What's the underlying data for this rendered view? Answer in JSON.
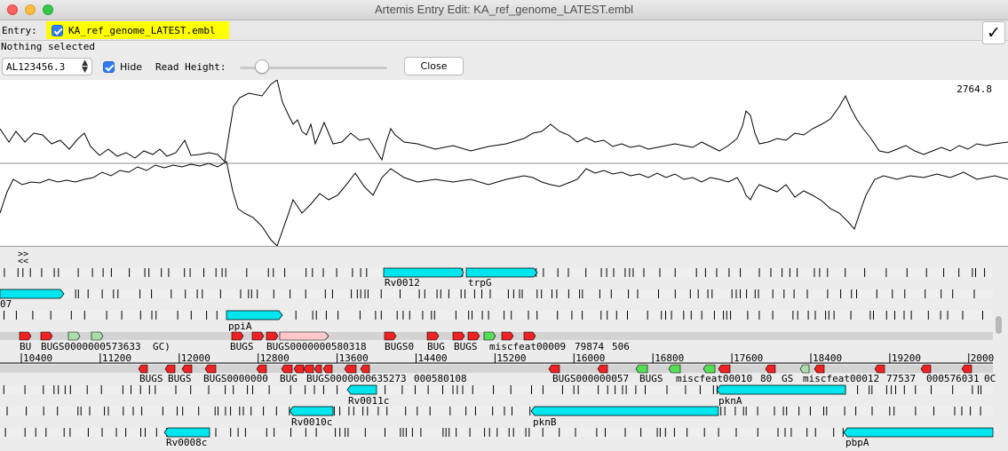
{
  "window": {
    "title": "Artemis Entry Edit: KA_ref_genome_LATEST.embl"
  },
  "entry_bar": {
    "label": "Entry:",
    "entry_name": "KA_ref_genome_LATEST.embl",
    "confirm_icon": "✓"
  },
  "status": {
    "text": "Nothing selected"
  },
  "controls": {
    "sequence_value": "AL123456.3",
    "hide_label": "Hide",
    "read_height_label": "Read Height:",
    "read_height_level": 0.15,
    "close_label": "Close"
  },
  "graph": {
    "max_label": "2764.8"
  },
  "nav": {
    "forward": ">>",
    "back": "<<"
  },
  "ruler": {
    "ticks": [
      "10400",
      "11200",
      "12000",
      "12800",
      "13600",
      "14400",
      "15200",
      "16000",
      "16800",
      "17600",
      "18400",
      "19200",
      "2000"
    ]
  },
  "features": {
    "forward_genes": [
      "Rv0012",
      "trpG",
      "ppiA"
    ],
    "fwd_frame2_label": "07",
    "reverse_genes": [
      "Rv0011c",
      "pknA",
      "Rv0010c",
      "pknB",
      "Rv0008c",
      "pbpA"
    ],
    "forward_misc": [
      "BU",
      "BUGS0000000573633",
      "GC)",
      "BUGS",
      "BUGS0000000580318",
      "BUGS0",
      "BUG",
      "BUGS",
      "miscfeat00009",
      "79874",
      "506"
    ],
    "reverse_misc": [
      "BUGS",
      "BUGS",
      "BUGS0000000",
      "BUG",
      "BUGS0000000635273",
      "000580108",
      "BUGS000000057",
      "BUGS",
      "miscfeat00010",
      "80",
      "GS",
      "miscfeat00012",
      "77537",
      "000576031",
      "0C"
    ]
  },
  "colors": {
    "gene": "#00e5ee",
    "misc_red": "#ee2222",
    "misc_green": "#55dd55",
    "misc_lightgreen": "#aaddaa",
    "selected_pink": "#ffc8c8",
    "highlight": "#ffff00"
  }
}
